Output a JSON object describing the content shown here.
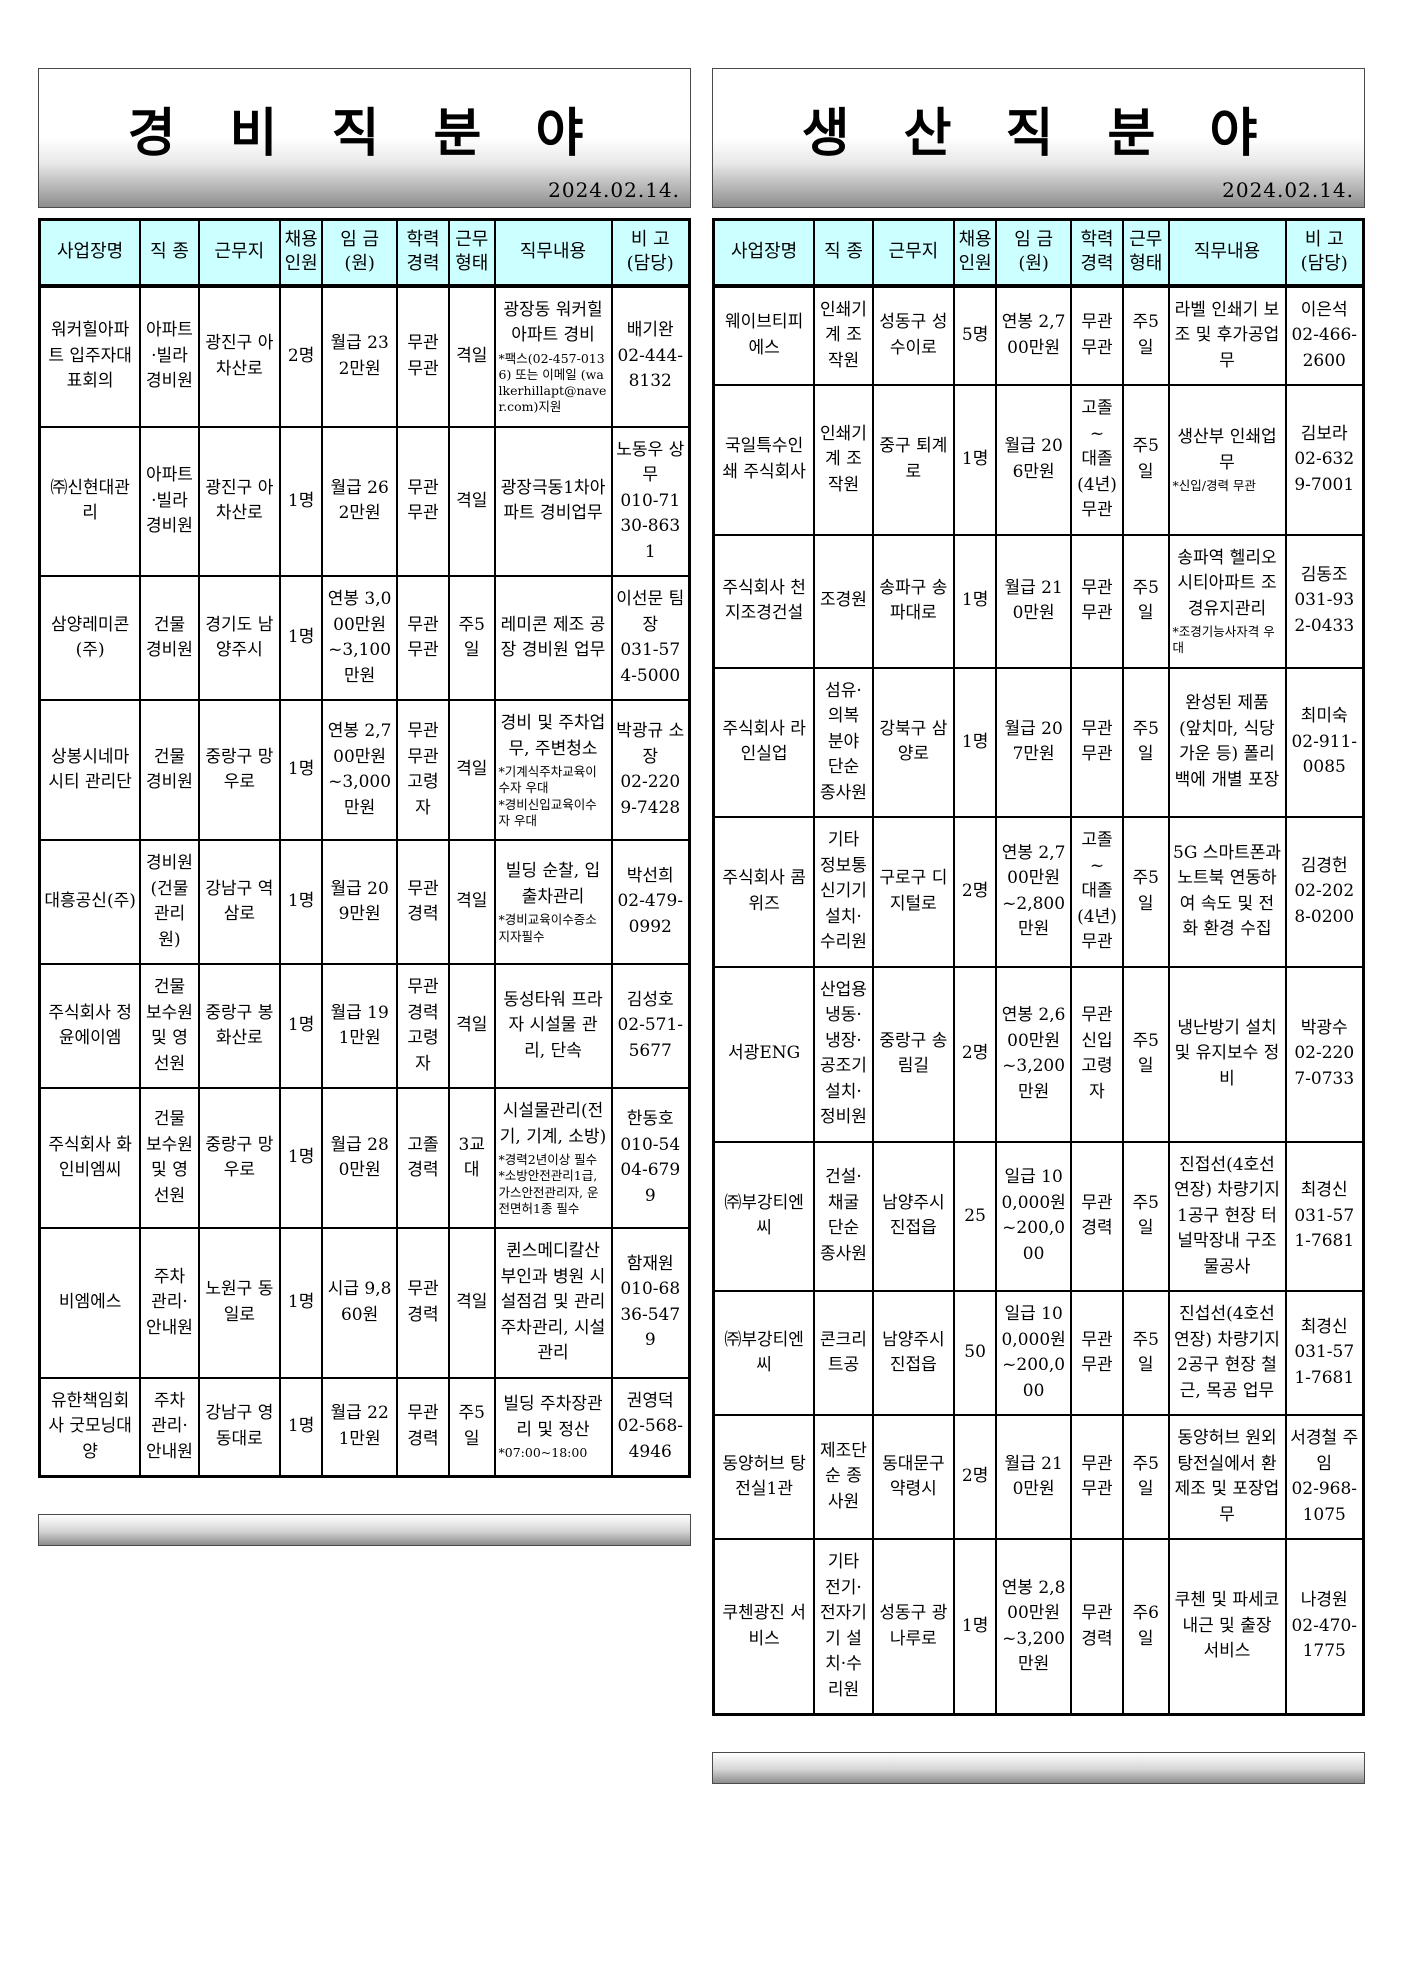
{
  "colors": {
    "header_bg": "#ccffff",
    "border": "#000000",
    "banner_gradient_end": "#8d8d8d"
  },
  "tables": [
    {
      "title": "경 비 직 분 야",
      "date": "2024.02.14.",
      "headers": [
        "사업장명",
        "직 종",
        "근무지",
        "채용\n인원",
        "임 금\n(원)",
        "학력\n경력",
        "근무\n형태",
        "직무내용",
        "비 고\n(담당)"
      ],
      "rows": [
        {
          "company": "워커힐아파트 입주자대표회의",
          "job": "아파트·빌라 경비원",
          "location": "광진구 아차산로",
          "hires": "2명",
          "wage": "월급 232만원",
          "edu": "무관\n무관",
          "shift": "격일",
          "duty": "광장동 워커힐아파트 경비",
          "duty_note": "*팩스(02-457-0136) 또는 이메일 (walkerhillapt@naver.com)지원",
          "contact": "배기완\n02-444-8132"
        },
        {
          "company": "㈜신현대관리",
          "job": "아파트·빌라 경비원",
          "location": "광진구 아차산로",
          "hires": "1명",
          "wage": "월급 262만원",
          "edu": "무관\n무관",
          "shift": "격일",
          "duty": "광장극동1차아파트 경비업무",
          "duty_note": "",
          "contact": "노동우 상무\n010-7130-8631"
        },
        {
          "company": "삼양레미콘(주)",
          "job": "건물 경비원",
          "location": "경기도 남양주시",
          "hires": "1명",
          "wage": "연봉 3,000만원 ~3,100만원",
          "edu": "무관\n무관",
          "shift": "주5일",
          "duty": "레미콘 제조 공장 경비원 업무",
          "duty_note": "",
          "contact": "이선문 팀장\n031-574-5000"
        },
        {
          "company": "상봉시네마시티 관리단",
          "job": "건물 경비원",
          "location": "중랑구 망우로",
          "hires": "1명",
          "wage": "연봉 2,700만원 ~3,000만원",
          "edu": "무관\n무관\n고령자",
          "shift": "격일",
          "duty": "경비 및 주차업무, 주변청소",
          "duty_note": "*기계식주차교육이수자 우대\n*경비신입교육이수자 우대",
          "contact": "박광규 소장\n02-2209-7428"
        },
        {
          "company": "대흥공신(주)",
          "job": "경비원 (건물 관리원)",
          "location": "강남구 역삼로",
          "hires": "1명",
          "wage": "월급 209만원",
          "edu": "무관\n경력",
          "shift": "격일",
          "duty": "빌딩 순찰, 입출차관리",
          "duty_note": "*경비교육이수증소지자필수",
          "contact": "박선희\n02-479-0992"
        },
        {
          "company": "주식회사 정윤에이엠",
          "job": "건물 보수원 및 영선원",
          "location": "중랑구 봉화산로",
          "hires": "1명",
          "wage": "월급 191만원",
          "edu": "무관\n경력\n고령자",
          "shift": "격일",
          "duty": "동성타워 프라자 시설물 관리, 단속",
          "duty_note": "",
          "contact": "김성호\n02-571-5677"
        },
        {
          "company": "주식회사 화인비엠씨",
          "job": "건물 보수원 및 영선원",
          "location": "중랑구 망우로",
          "hires": "1명",
          "wage": "월급 280만원",
          "edu": "고졸\n경력",
          "shift": "3교대",
          "duty": "시설물관리(전기, 기계, 소방)",
          "duty_note": "*경력2년이상 필수\n*소방안전관리1급, 가스안전관리자, 운전면허1종  필수",
          "contact": "한동호\n010-5404-6799"
        },
        {
          "company": "비엠에스",
          "job": "주차 관리· 안내원",
          "location": "노원구 동일로",
          "hires": "1명",
          "wage": "시급 9,860원",
          "edu": "무관\n경력",
          "shift": "격일",
          "duty": "퀸스메디칼산부인과 병원 시설점검 및 관리 주차관리, 시설관리",
          "duty_note": "",
          "contact": "함재원\n010-6836-5479"
        },
        {
          "company": "유한책임회사 굿모닝대양",
          "job": "주차 관리· 안내원",
          "location": "강남구 영동대로",
          "hires": "1명",
          "wage": "월급 221만원",
          "edu": "무관\n경력",
          "shift": "주5일",
          "duty": "빌딩 주차장관리 및 정산",
          "duty_note": "*07:00~18:00",
          "contact": "권영덕\n02-568-4946"
        }
      ]
    },
    {
      "title": "생 산 직 분 야",
      "date": "2024.02.14.",
      "headers": [
        "사업장명",
        "직 종",
        "근무지",
        "채용\n인원",
        "임 금\n(원)",
        "학력\n경력",
        "근무\n형태",
        "직무내용",
        "비 고\n(담당)"
      ],
      "rows": [
        {
          "company": "웨이브티피에스",
          "job": "인쇄기계 조작원",
          "location": "성동구 성수이로",
          "hires": "5명",
          "wage": "연봉 2,700만원",
          "edu": "무관\n무관",
          "shift": "주5일",
          "duty": "라벨 인쇄기 보조 및 후가공업무",
          "duty_note": "",
          "contact": "이은석\n02-466-2600"
        },
        {
          "company": "국일특수인쇄 주식회사",
          "job": "인쇄기계 조작원",
          "location": "중구 퇴계로",
          "hires": "1명",
          "wage": "월급 206만원",
          "edu": "고졸~\n대졸(4년)\n무관",
          "shift": "주5일",
          "duty": "생산부 인쇄업무",
          "duty_note": "*신입/경력 무관",
          "contact": "김보라\n02-6329-7001"
        },
        {
          "company": "주식회사 천지조경건설",
          "job": "조경원",
          "location": "송파구 송파대로",
          "hires": "1명",
          "wage": "월급 210만원",
          "edu": "무관\n무관",
          "shift": "주5일",
          "duty": "송파역 헬리오시티아파트 조경유지관리",
          "duty_note": "*조경기능사자격 우대",
          "contact": "김동조\n031-932-0433"
        },
        {
          "company": "주식회사 라인실업",
          "job": "섬유·의복 분야 단순 종사원",
          "location": "강북구 삼양로",
          "hires": "1명",
          "wage": "월급 207만원",
          "edu": "무관\n무관",
          "shift": "주5일",
          "duty": "완성된 제품 (앞치마, 식당가운 등) 폴리백에 개별 포장",
          "duty_note": "",
          "contact": "최미숙\n02-911-0085"
        },
        {
          "company": "주식회사 콤위즈",
          "job": "기타 정보통신기기 설치·수리원",
          "location": "구로구 디지털로",
          "hires": "2명",
          "wage": "연봉 2,700만원 ~2,800만원",
          "edu": "고졸~\n대졸(4년)\n무관",
          "shift": "주5일",
          "duty": "5G 스마트폰과 노트북 연동하여 속도 및 전화 환경 수집",
          "duty_note": "",
          "contact": "김경헌\n02-2028-0200"
        },
        {
          "company": "서광ENG",
          "job": "산업용 냉동· 냉장· 공조기 설치· 정비원",
          "location": "중랑구 송림길",
          "hires": "2명",
          "wage": "연봉 2,600만원 ~3,200만원",
          "edu": "무관\n신입\n고령자",
          "shift": "주5일",
          "duty": "냉난방기 설치 및 유지보수 정비",
          "duty_note": "",
          "contact": "박광수\n02-2207-0733"
        },
        {
          "company": "㈜부강티엔씨",
          "job": "건설· 채굴 단순 종사원",
          "location": "남양주시 진접읍",
          "hires": "25",
          "wage": "일급 100,000원 ~200,000",
          "edu": "무관\n경력",
          "shift": "주5일",
          "duty": "진접선(4호선 연장) 차량기지 1공구 현장 터널막장내 구조물공사",
          "duty_note": "",
          "contact": "최경신\n031-571-7681"
        },
        {
          "company": "㈜부강티엔씨",
          "job": "콘크리트공",
          "location": "남양주시 진접읍",
          "hires": "50",
          "wage": "일급 100,000원 ~200,000",
          "edu": "무관\n무관",
          "shift": "주5일",
          "duty": "진섭선(4호선 연장) 차량기지 2공구 현장 철근, 목공 업무",
          "duty_note": "",
          "contact": "최경신\n031-571-7681"
        },
        {
          "company": "동양허브 탕전실1관",
          "job": "제조단순 종사원",
          "location": "동대문구 약령시",
          "hires": "2명",
          "wage": "월급 210만원",
          "edu": "무관\n무관",
          "shift": "주5일",
          "duty": "동양허브 원외 탕전실에서 환 제조 및 포장업무",
          "duty_note": "",
          "contact": "서경철 주임\n02-968-1075"
        },
        {
          "company": "쿠첸광진 서비스",
          "job": "기타 전기· 전자기기 설치·수리원",
          "location": "성동구 광나루로",
          "hires": "1명",
          "wage": "연봉 2,800만원 ~3,200만원",
          "edu": "무관\n경력",
          "shift": "주6일",
          "duty": "쿠첸 및 파세코 내근 및 출장 서비스",
          "duty_note": "",
          "contact": "나경원\n02-470-1775"
        }
      ]
    }
  ]
}
